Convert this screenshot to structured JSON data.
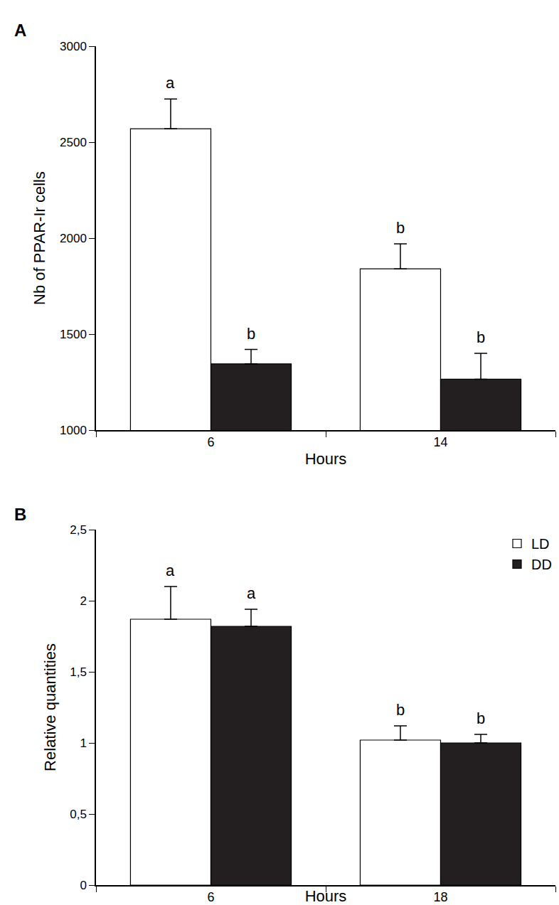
{
  "chart_data": [
    {
      "type": "bar",
      "panel": "A",
      "x_label": "Hours",
      "y_label": "Nb of PPAR-Ir cells",
      "categories": [
        "6",
        "14"
      ],
      "series": [
        {
          "color": "#ffffff",
          "values": [
            2570,
            1840
          ],
          "errors": [
            155,
            130
          ],
          "letters": [
            "a",
            "b"
          ]
        },
        {
          "color": "#231f20",
          "values": [
            1345,
            1265
          ],
          "errors": [
            75,
            135
          ],
          "letters": [
            "b",
            "b"
          ]
        }
      ],
      "ylim": [
        1000,
        3000
      ],
      "yticks": [
        1000,
        1500,
        2000,
        2500,
        3000
      ]
    },
    {
      "type": "bar",
      "panel": "B",
      "x_label": "Hours",
      "y_label": "Relative quantities",
      "categories": [
        "6",
        "18"
      ],
      "series": [
        {
          "name": "LD",
          "color": "#ffffff",
          "values": [
            1.87,
            1.02
          ],
          "errors": [
            0.23,
            0.1
          ],
          "letters": [
            "a",
            "b"
          ]
        },
        {
          "name": "DD",
          "color": "#231f20",
          "values": [
            1.82,
            1.0
          ],
          "errors": [
            0.12,
            0.06
          ],
          "letters": [
            "a",
            "b"
          ]
        }
      ],
      "ylim": [
        0,
        2.5
      ],
      "yticks": [
        0,
        {
          "value": 0.5,
          "label": "0,5"
        },
        1,
        {
          "value": 1.5,
          "label": "1,5"
        },
        2,
        {
          "value": 2.5,
          "label": "2,5"
        }
      ],
      "legend": "upper right"
    }
  ]
}
